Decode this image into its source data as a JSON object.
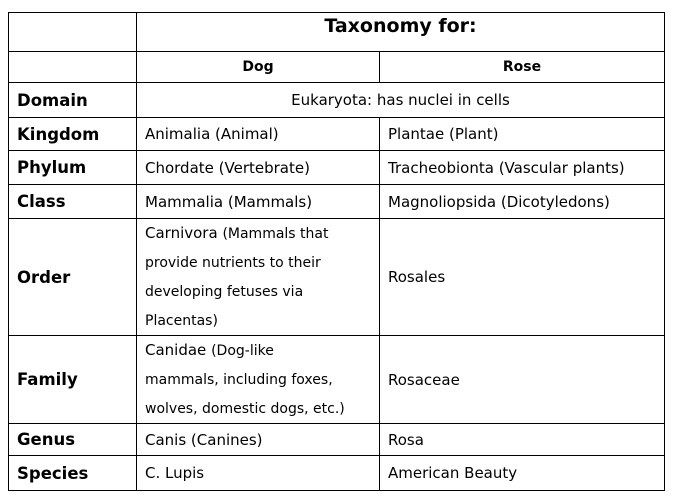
{
  "table": {
    "title": "Taxonomy for:",
    "columns": [
      "Dog",
      "Rose"
    ],
    "domain": {
      "rank": "Domain",
      "value": "Eukaryota: has nuclei in cells"
    },
    "rows": [
      {
        "rank": "Kingdom",
        "dog": "Animalia (Animal)",
        "rose": "Plantae (Plant)"
      },
      {
        "rank": "Phylum",
        "dog": "Chordate (Vertebrate)",
        "rose": "Tracheobionta (Vascular plants)"
      },
      {
        "rank": "Class",
        "dog": "Mammalia (Mammals)",
        "rose": "Magnoliopsida  (Dicotyledons)"
      },
      {
        "rank": "Order",
        "dog_name": "Carnivora",
        "dog_note_lines": [
          "(Mammals that",
          "provide nutrients to their",
          "developing fetuses via",
          "Placentas)"
        ],
        "rose": "Rosales"
      },
      {
        "rank": "Family",
        "dog_name": "Canidae",
        "dog_note_lines": [
          "(Dog-like",
          "mammals, including foxes,",
          "wolves, domestic dogs, etc.)"
        ],
        "rose": "Rosaceae"
      },
      {
        "rank": "Genus",
        "dog": "Canis (Canines)",
        "rose": "Rosa"
      },
      {
        "rank": "Species",
        "dog": "C. Lupis",
        "rose": "American Beauty"
      }
    ]
  }
}
